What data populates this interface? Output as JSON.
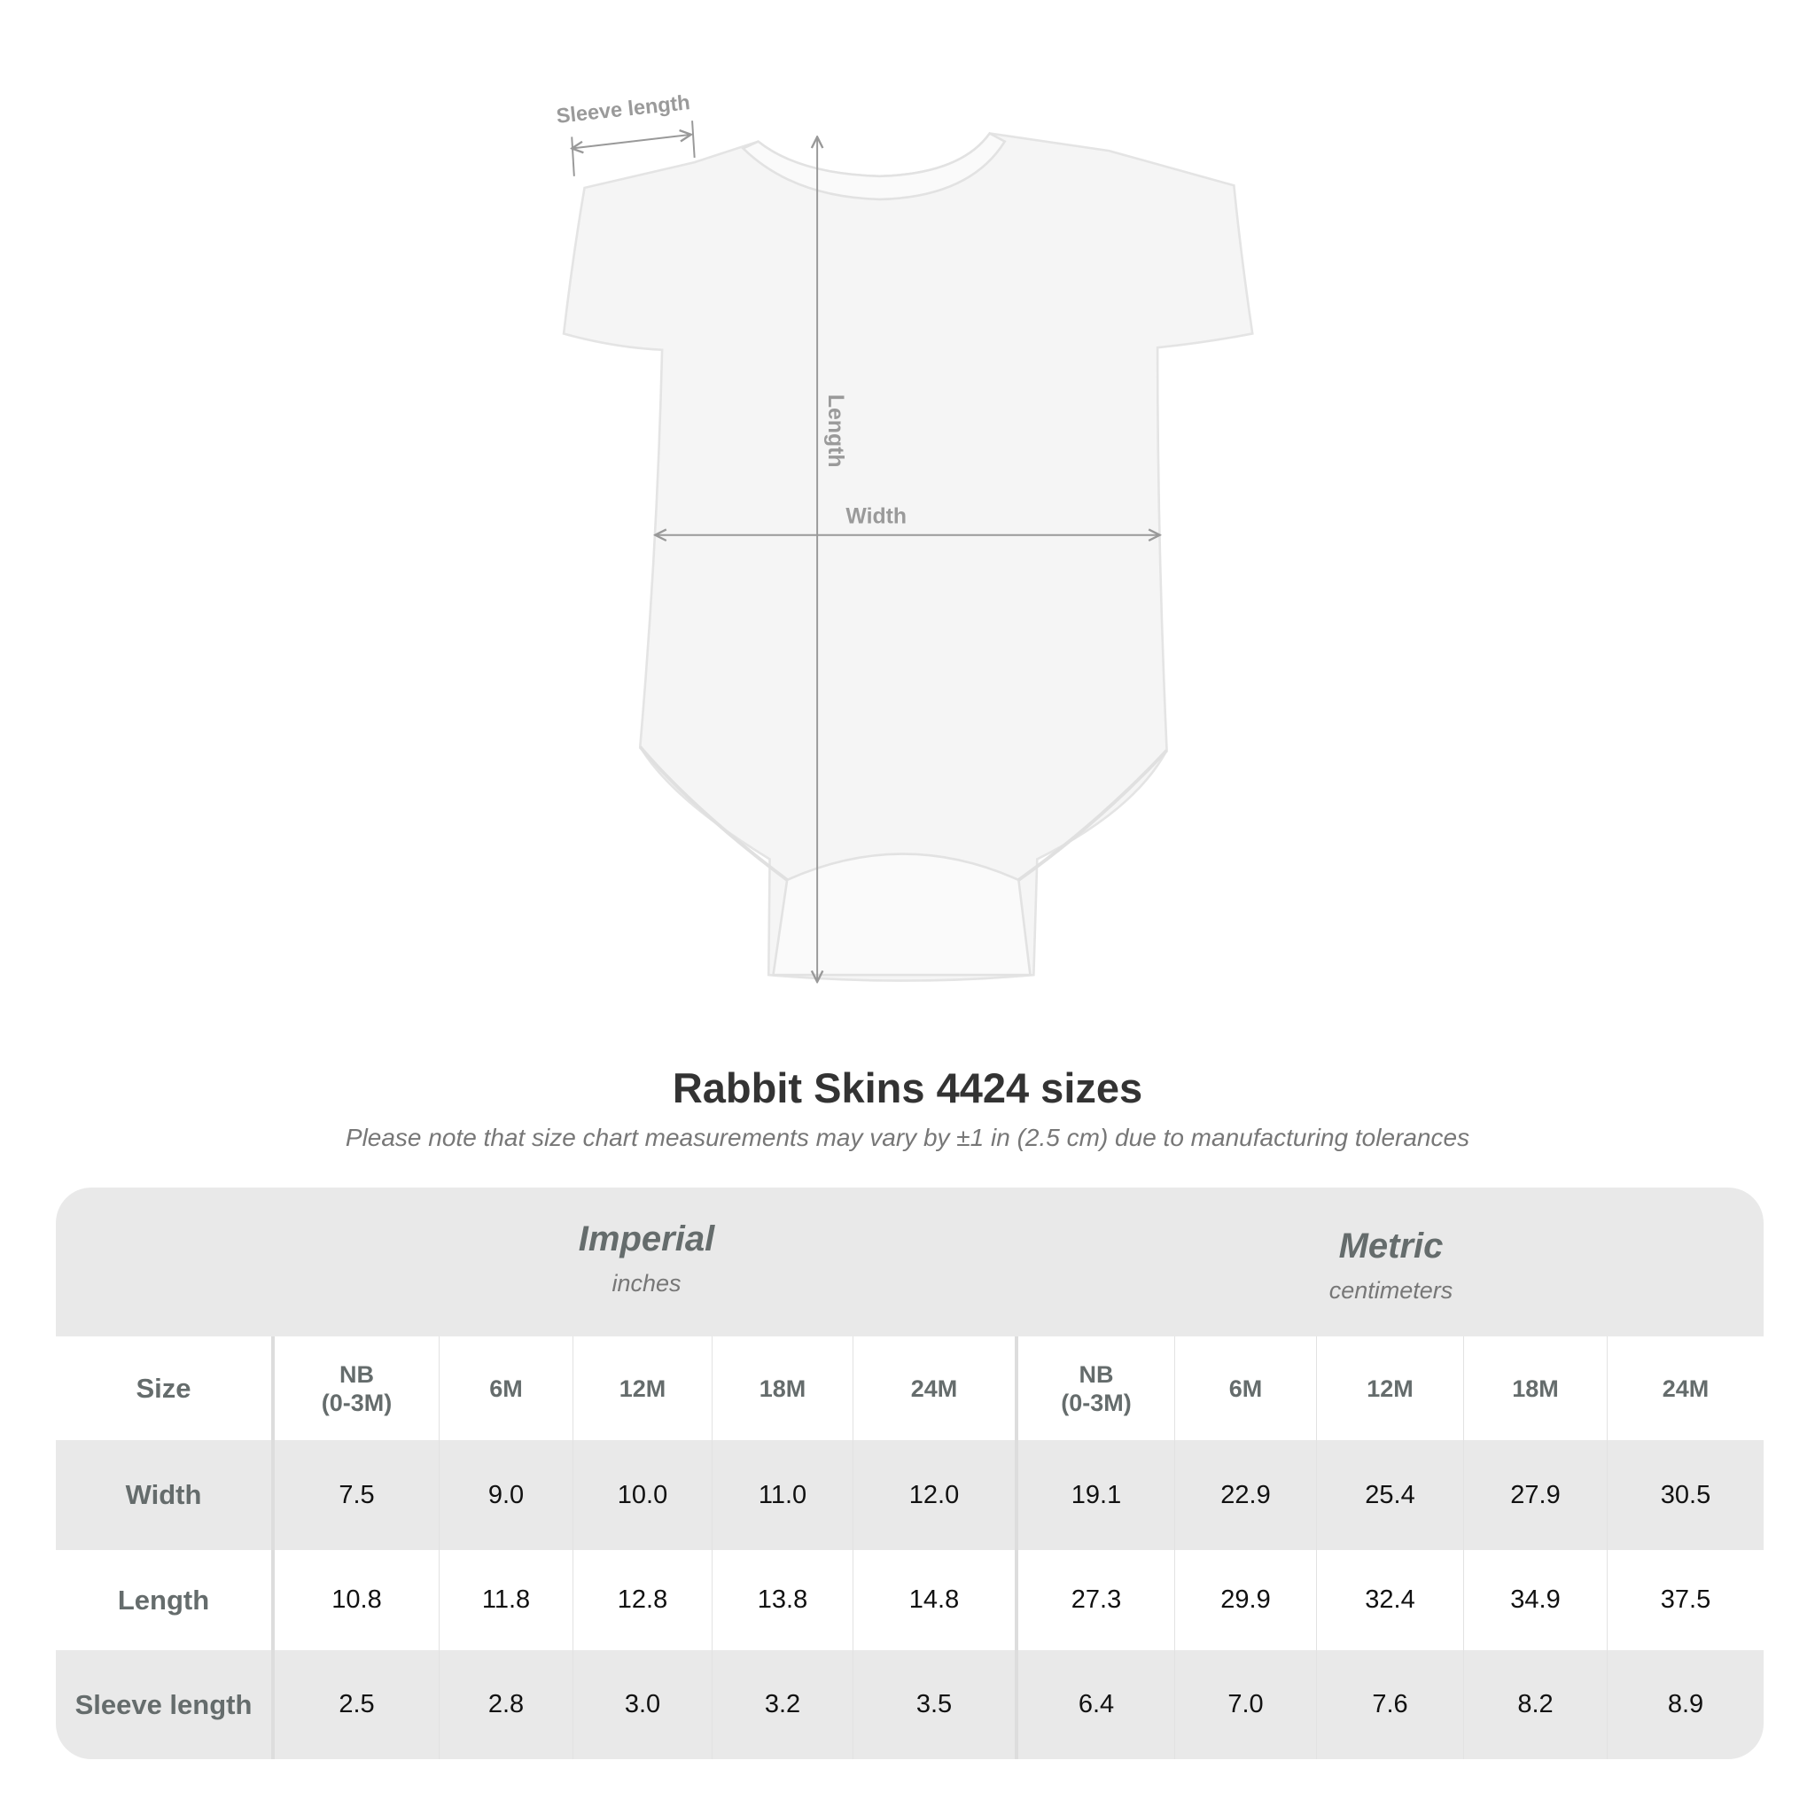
{
  "diagram": {
    "labels": {
      "sleeve_length": "Sleeve length",
      "length": "Length",
      "width": "Width"
    }
  },
  "title": "Rabbit Skins 4424 sizes",
  "subtitle": "Please note that size chart measurements may vary by ±1 in (2.5 cm) due to manufacturing tolerances",
  "table": {
    "imperial": {
      "name": "Imperial",
      "unit": "inches"
    },
    "metric": {
      "name": "Metric",
      "unit": "centimeters"
    },
    "size_label": "Size",
    "sizes": [
      "NB\n(0-3M)",
      "6M",
      "12M",
      "18M",
      "24M"
    ],
    "rows": [
      {
        "label": "Width",
        "imperial": [
          "7.5",
          "9.0",
          "10.0",
          "11.0",
          "12.0"
        ],
        "metric": [
          "19.1",
          "22.9",
          "25.4",
          "27.9",
          "30.5"
        ]
      },
      {
        "label": "Length",
        "imperial": [
          "10.8",
          "11.8",
          "12.8",
          "13.8",
          "14.8"
        ],
        "metric": [
          "27.3",
          "29.9",
          "32.4",
          "34.9",
          "37.5"
        ]
      },
      {
        "label": "Sleeve length",
        "imperial": [
          "2.5",
          "2.8",
          "3.0",
          "3.2",
          "3.5"
        ],
        "metric": [
          "6.4",
          "7.0",
          "7.6",
          "8.2",
          "8.9"
        ]
      }
    ]
  }
}
